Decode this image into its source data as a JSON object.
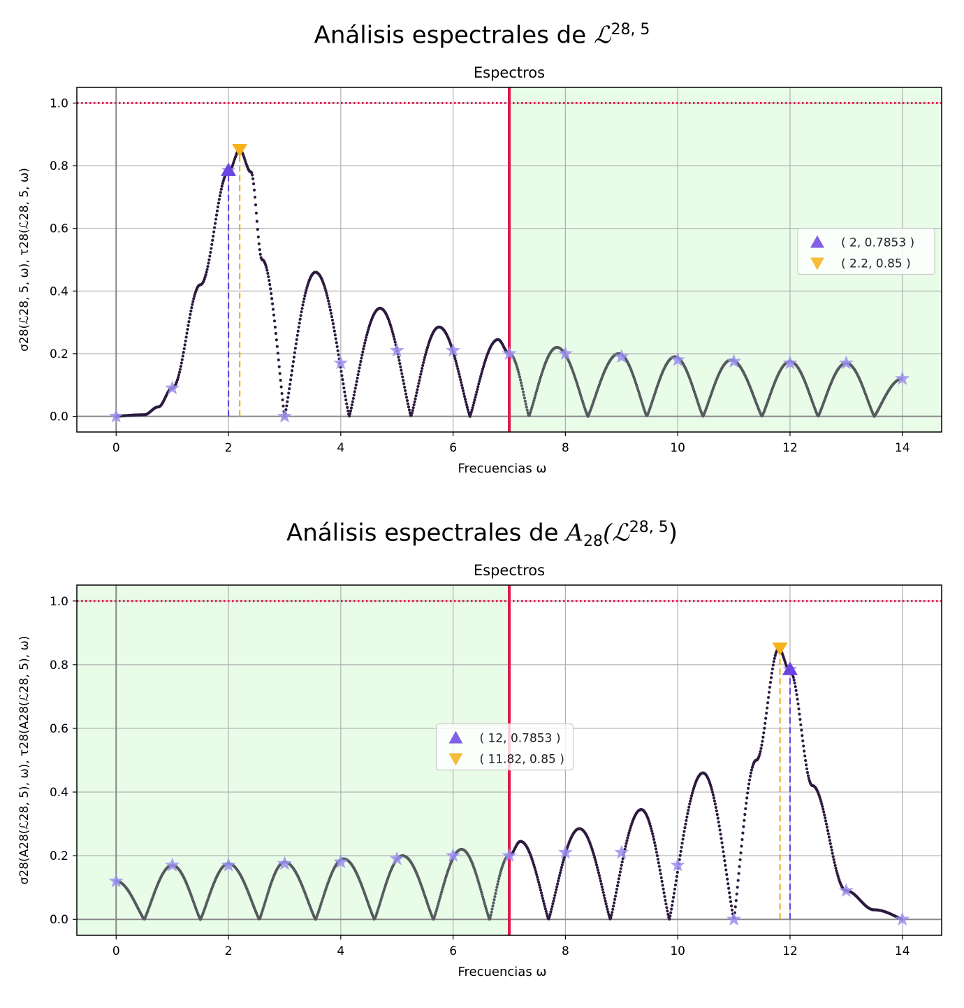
{
  "figure": {
    "charts": [
      {
        "suptitle_prefix": "Análisis espectrales de ",
        "suptitle_math": "ℒ",
        "suptitle_sup": "28, 5",
        "suptitle_sub": "",
        "suptitle_suffix": ""
      },
      {
        "suptitle_prefix": "Análisis espectrales de ",
        "suptitle_math": "A",
        "suptitle_sub": "28",
        "suptitle_open": "(ℒ",
        "suptitle_sup": "28, 5",
        "suptitle_suffix": ")"
      }
    ]
  },
  "colors": {
    "curve_sigma": "#2d1a3f",
    "curve_tau": "#555a5e",
    "shade": "#e8fce8",
    "red_line": "#e0174f",
    "red_dots": "#e0174f",
    "star": "#9b8ff0",
    "up_marker": "#6b45e0",
    "down_marker": "#f5b21a",
    "grid": "#b0b0b0"
  },
  "chart_data": [
    {
      "type": "line",
      "title": "Espectros",
      "xlabel": "Frecuencias ω",
      "ylabel": "σ28(ℒ28, 5, ω),  τ28(ℒ28, 5, ω)",
      "xlim": [
        -0.7,
        14.7
      ],
      "ylim": [
        -0.05,
        1.05
      ],
      "xticks": [
        0,
        2,
        4,
        6,
        8,
        10,
        12,
        14
      ],
      "yticks": [
        0.0,
        0.2,
        0.4,
        0.6,
        0.8,
        1.0
      ],
      "grid": true,
      "reference_line_y": 1.0,
      "vertical_line_x": 7,
      "shaded_region": [
        7,
        14.7
      ],
      "series": [
        {
          "x": [
            0,
            0.5,
            0.75,
            1.0,
            1.5,
            2.0,
            2.2,
            2.4,
            2.6,
            3.0,
            3.55,
            4.15,
            4.7,
            5.25,
            5.75,
            6.3,
            6.8,
            7.0,
            7.35,
            7.85,
            8.4,
            8.95,
            9.45,
            9.95,
            10.45,
            10.95,
            11.5,
            12.0,
            12.5,
            13.0,
            13.5,
            14.0
          ],
          "y": [
            0.0,
            0.005,
            0.03,
            0.09,
            0.42,
            0.78,
            0.85,
            0.78,
            0.5,
            0.0,
            0.46,
            0.0,
            0.345,
            0.0,
            0.285,
            0.0,
            0.245,
            0.2,
            0.0,
            0.22,
            0.0,
            0.2,
            0.0,
            0.19,
            0.0,
            0.18,
            0.0,
            0.175,
            0.0,
            0.17,
            0.0,
            0.12
          ]
        }
      ],
      "stars": {
        "x": [
          0,
          1,
          2,
          3,
          4,
          5,
          6,
          7,
          8,
          9,
          10,
          11,
          12,
          13,
          14
        ],
        "y": [
          0.0,
          0.09,
          0.785,
          0.0,
          0.17,
          0.21,
          0.21,
          0.2,
          0.2,
          0.19,
          0.18,
          0.175,
          0.17,
          0.17,
          0.12
        ]
      },
      "markers": [
        {
          "shape": "up",
          "x": 2,
          "y": 0.7853,
          "label": "( 2, 0.7853 )"
        },
        {
          "shape": "down",
          "x": 2.2,
          "y": 0.85,
          "label": "( 2.2, 0.85 )"
        }
      ],
      "legend": "center-right"
    },
    {
      "type": "line",
      "title": "Espectros",
      "xlabel": "Frecuencias ω",
      "ylabel": "σ28(A28(ℒ28, 5), ω),  τ28(A28(ℒ28, 5), ω)",
      "xlim": [
        -0.7,
        14.7
      ],
      "ylim": [
        -0.05,
        1.05
      ],
      "xticks": [
        0,
        2,
        4,
        6,
        8,
        10,
        12,
        14
      ],
      "yticks": [
        0.0,
        0.2,
        0.4,
        0.6,
        0.8,
        1.0
      ],
      "grid": true,
      "reference_line_y": 1.0,
      "vertical_line_x": 7,
      "shaded_region": [
        -0.7,
        7
      ],
      "series": [
        {
          "x": [
            0,
            0.5,
            1.0,
            1.5,
            2.0,
            2.55,
            3.0,
            3.55,
            4.05,
            4.6,
            5.1,
            5.65,
            6.15,
            6.65,
            7.0,
            7.2,
            7.7,
            8.25,
            8.8,
            9.35,
            9.85,
            10.45,
            11.0,
            11.4,
            11.8,
            12.0,
            12.4,
            13.0,
            13.5,
            14.0
          ],
          "y": [
            0.12,
            0.0,
            0.17,
            0.0,
            0.175,
            0.0,
            0.18,
            0.0,
            0.19,
            0.0,
            0.2,
            0.0,
            0.22,
            0.0,
            0.2,
            0.245,
            0.0,
            0.285,
            0.0,
            0.345,
            0.0,
            0.46,
            0.0,
            0.5,
            0.85,
            0.78,
            0.42,
            0.09,
            0.03,
            0.0
          ]
        }
      ],
      "stars": {
        "x": [
          0,
          1,
          2,
          3,
          4,
          5,
          6,
          7,
          8,
          9,
          10,
          11,
          12,
          13,
          14
        ],
        "y": [
          0.12,
          0.17,
          0.17,
          0.175,
          0.18,
          0.19,
          0.2,
          0.2,
          0.21,
          0.21,
          0.17,
          0.0,
          0.785,
          0.09,
          0.0
        ]
      },
      "markers": [
        {
          "shape": "up",
          "x": 12,
          "y": 0.7853,
          "label": "( 12, 0.7853 )"
        },
        {
          "shape": "down",
          "x": 11.82,
          "y": 0.85,
          "label": "( 11.82, 0.85 )"
        }
      ],
      "legend": "center"
    }
  ]
}
